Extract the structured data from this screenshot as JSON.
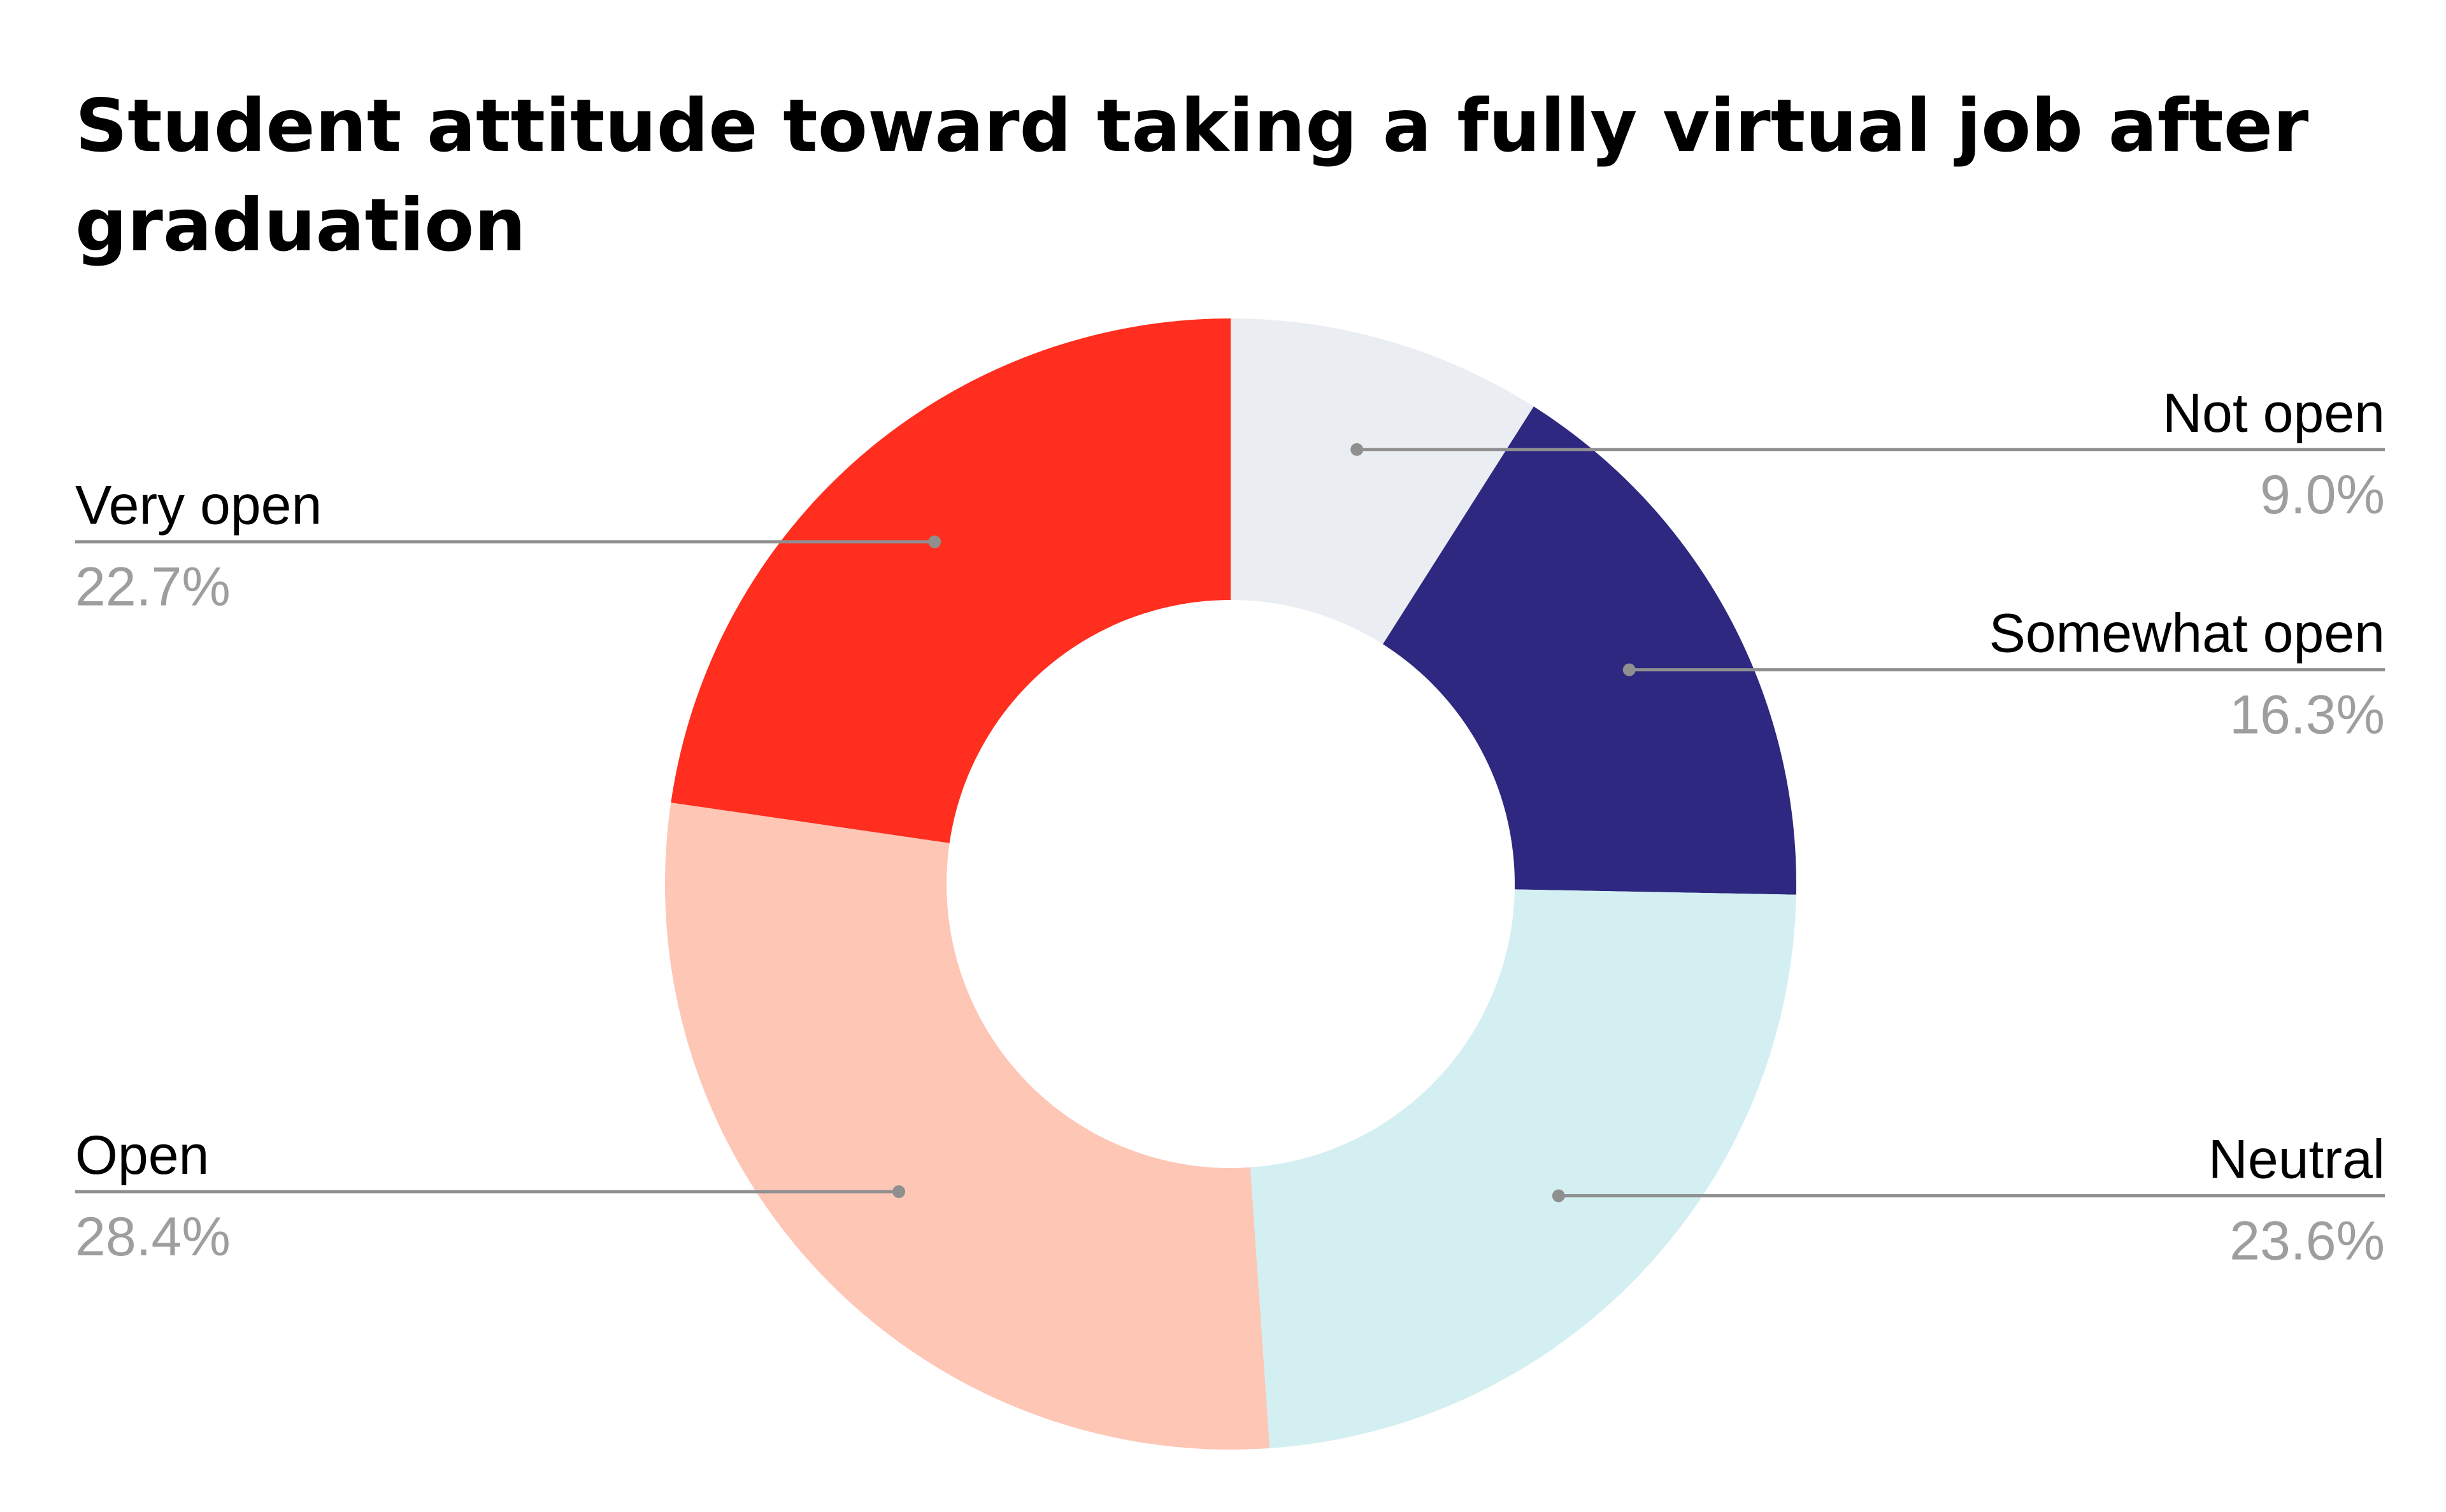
{
  "chart_data": {
    "type": "pie",
    "title": "Student attitude toward taking a fully virtual job after graduation",
    "donut": true,
    "legend": "none",
    "slices": [
      {
        "label": "Not open",
        "value": 9.0,
        "display": "9.0%",
        "color": "#eaedf2",
        "side": "right"
      },
      {
        "label": "Somewhat open",
        "value": 16.3,
        "display": "16.3%",
        "color": "#2e2880",
        "side": "right"
      },
      {
        "label": "Neutral",
        "value": 23.6,
        "display": "23.6%",
        "color": "#d3eff2",
        "side": "right"
      },
      {
        "label": "Open",
        "value": 28.4,
        "display": "28.4%",
        "color": "#fdc6b5",
        "side": "left"
      },
      {
        "label": "Very open",
        "value": 22.7,
        "display": "22.7%",
        "color": "#ff2e1f",
        "side": "left"
      }
    ]
  }
}
